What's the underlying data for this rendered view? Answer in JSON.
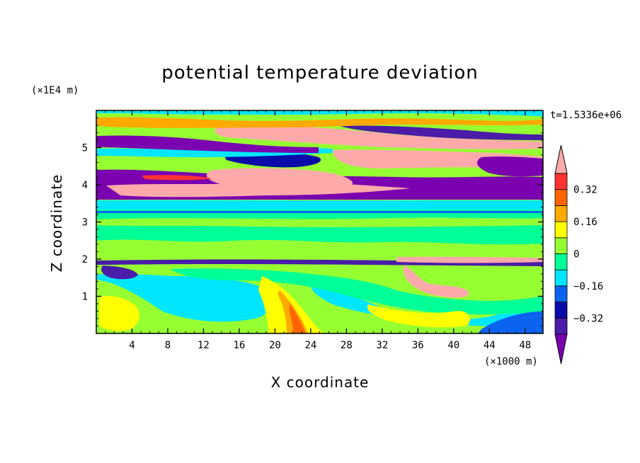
{
  "chart_data": {
    "type": "heatmap",
    "title": "potential temperature deviation",
    "xlabel": "X coordinate",
    "ylabel": "Z coordinate",
    "x_unit": "(×1000 m)",
    "y_unit": "(×1E4 m)",
    "timestamp": "t=1.5336e+06",
    "xlim": [
      0,
      50
    ],
    "ylim": [
      0,
      6
    ],
    "x_ticks": [
      4,
      8,
      12,
      16,
      20,
      24,
      28,
      32,
      36,
      40,
      44,
      48
    ],
    "y_ticks": [
      1,
      2,
      3,
      4,
      5
    ],
    "colorbar": {
      "levels": [
        -0.4,
        -0.32,
        -0.24,
        -0.16,
        -0.08,
        0,
        0.08,
        0.16,
        0.24,
        0.32,
        0.4
      ],
      "tick_labels": [
        "0.32",
        "0.16",
        "0",
        "−0.16",
        "−0.32"
      ],
      "tick_values": [
        0.32,
        0.16,
        0,
        -0.16,
        -0.32
      ],
      "colors": [
        "#7a00b0",
        "#4a1ca8",
        "#0a0aa8",
        "#0a64f0",
        "#00e6ff",
        "#00ff96",
        "#96ff32",
        "#ffff00",
        "#ffaa00",
        "#ff6400",
        "#ff3232",
        "#ffaaaa"
      ]
    },
    "grid": false
  }
}
